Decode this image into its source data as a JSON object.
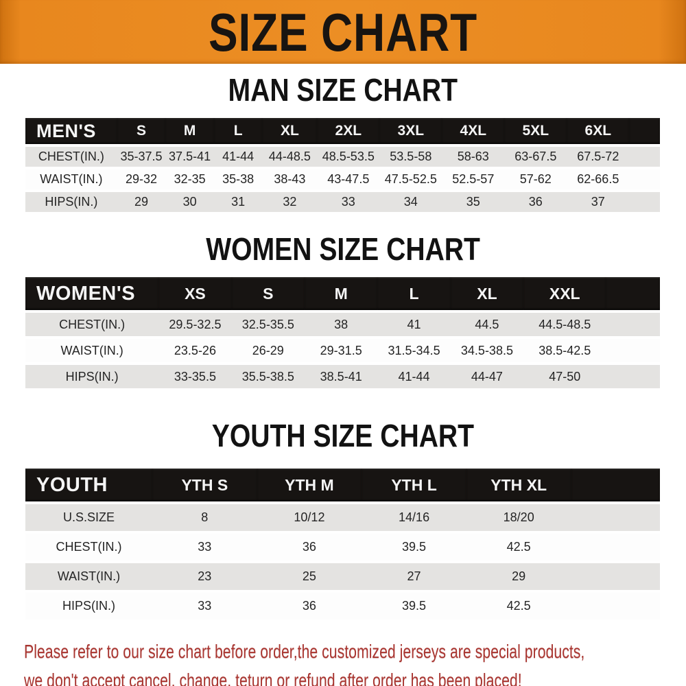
{
  "banner": {
    "title": "SIZE CHART",
    "bg_color": "#e8871e",
    "text_color": "#181411"
  },
  "sections": [
    {
      "id": "men",
      "heading": "MAN SIZE CHART",
      "table": {
        "corner_label": "MEN'S",
        "columns": [
          "S",
          "M",
          "L",
          "XL",
          "2XL",
          "3XL",
          "4XL",
          "5XL",
          "6XL"
        ],
        "rows": [
          {
            "label": "CHEST(IN.)",
            "values": [
              "35-37.5",
              "37.5-41",
              "41-44",
              "44-48.5",
              "48.5-53.5",
              "53.5-58",
              "58-63",
              "63-67.5",
              "67.5-72"
            ]
          },
          {
            "label": "WAIST(IN.)",
            "values": [
              "29-32",
              "32-35",
              "35-38",
              "38-43",
              "43-47.5",
              "47.5-52.5",
              "52.5-57",
              "57-62",
              "62-66.5"
            ]
          },
          {
            "label": "HIPS(IN.)",
            "values": [
              "29",
              "30",
              "31",
              "32",
              "33",
              "34",
              "35",
              "36",
              "37"
            ]
          }
        ]
      }
    },
    {
      "id": "women",
      "heading": "WOMEN SIZE CHART",
      "table": {
        "corner_label": "WOMEN'S",
        "columns": [
          "XS",
          "S",
          "M",
          "L",
          "XL",
          "XXL"
        ],
        "rows": [
          {
            "label": "CHEST(IN.)",
            "values": [
              "29.5-32.5",
              "32.5-35.5",
              "38",
              "41",
              "44.5",
              "44.5-48.5"
            ]
          },
          {
            "label": "WAIST(IN.)",
            "values": [
              "23.5-26",
              "26-29",
              "29-31.5",
              "31.5-34.5",
              "34.5-38.5",
              "38.5-42.5"
            ]
          },
          {
            "label": "HIPS(IN.)",
            "values": [
              "33-35.5",
              "35.5-38.5",
              "38.5-41",
              "41-44",
              "44-47",
              "47-50"
            ]
          }
        ]
      }
    },
    {
      "id": "youth",
      "heading": "YOUTH SIZE CHART",
      "table": {
        "corner_label": "YOUTH",
        "columns": [
          "YTH S",
          "YTH M",
          "YTH L",
          "YTH XL"
        ],
        "rows": [
          {
            "label": "U.S.SIZE",
            "values": [
              "8",
              "10/12",
              "14/16",
              "18/20"
            ]
          },
          {
            "label": "CHEST(IN.)",
            "values": [
              "33",
              "36",
              "39.5",
              "42.5"
            ]
          },
          {
            "label": "WAIST(IN.)",
            "values": [
              "23",
              "25",
              "27",
              "29"
            ]
          },
          {
            "label": "HIPS(IN.)",
            "values": [
              "33",
              "36",
              "39.5",
              "42.5"
            ]
          }
        ]
      }
    }
  ],
  "footer": {
    "text_color": "#a93530",
    "lines": [
      "Please refer to our size chart before order,the customized jerseys are special products,",
      "we don't accept cancel, change, teturn or refund after order has been placed!"
    ]
  }
}
